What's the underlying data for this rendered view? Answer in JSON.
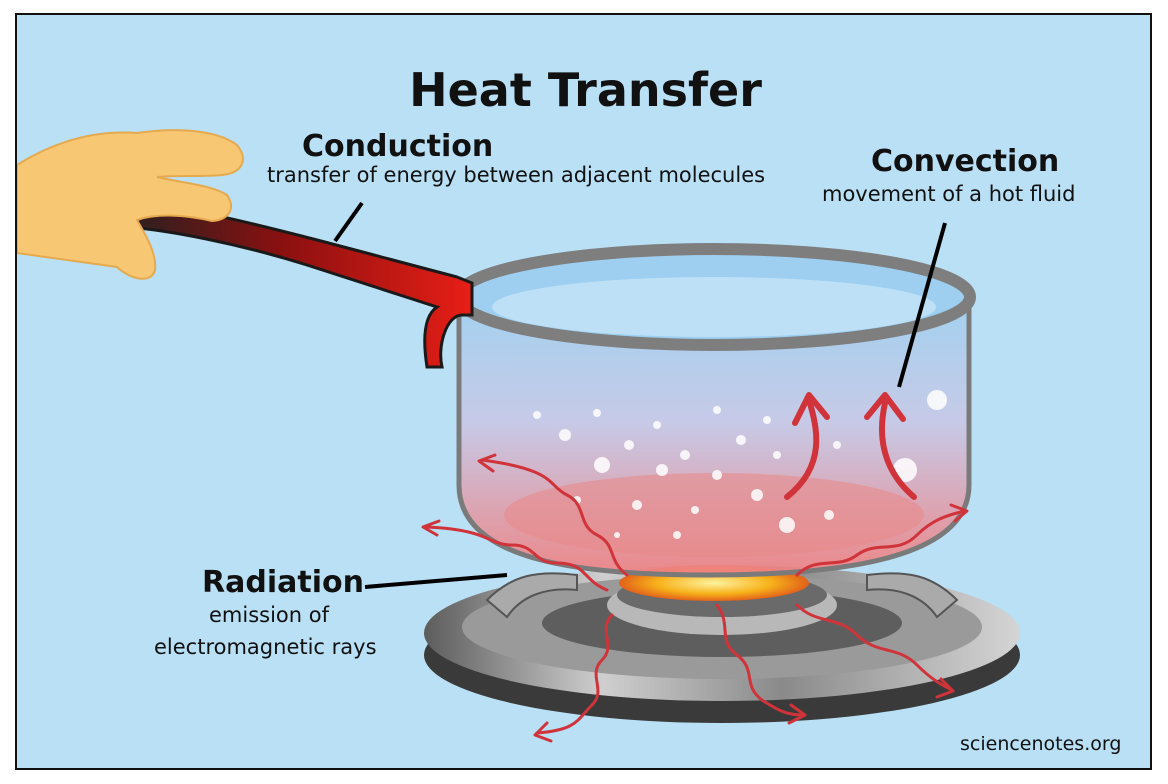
{
  "title": "Heat Transfer",
  "conduction": {
    "heading": "Conduction",
    "description": "transfer of energy between adjacent molecules"
  },
  "convection": {
    "heading": "Convection",
    "description": "movement of a hot fluid"
  },
  "radiation": {
    "heading": "Radiation",
    "description_line1": "emission of",
    "description_line2": "electromagnetic rays"
  },
  "source": "sciencenotes.org",
  "colors": {
    "background": "#b9e0f5",
    "handle": "#d8201a",
    "arrows": "#d0343a",
    "flame": "#f7b21a",
    "hand": "#f8c774"
  }
}
